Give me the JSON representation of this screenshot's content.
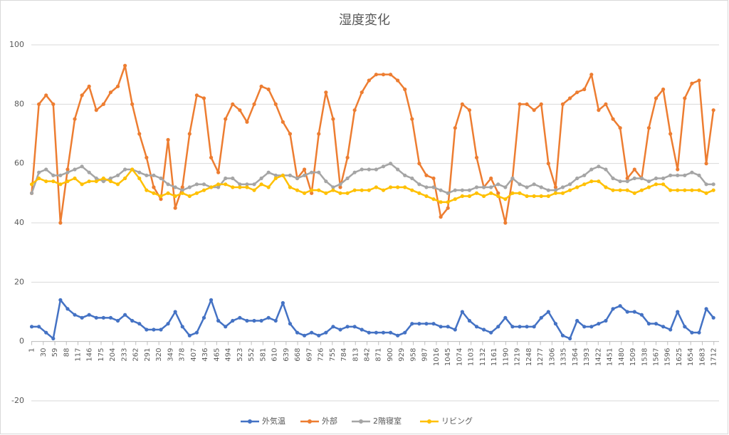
{
  "chart_data": {
    "type": "line",
    "title": "湿度変化",
    "x": [
      1,
      19,
      37,
      55,
      73,
      91,
      109,
      127,
      145,
      163,
      181,
      199,
      217,
      235,
      253,
      271,
      289,
      307,
      325,
      343,
      361,
      379,
      397,
      415,
      433,
      451,
      469,
      487,
      505,
      523,
      541,
      559,
      577,
      595,
      613,
      631,
      649,
      667,
      685,
      703,
      721,
      739,
      757,
      775,
      793,
      811,
      829,
      847,
      865,
      883,
      901,
      919,
      937,
      955,
      973,
      991,
      1009,
      1027,
      1045,
      1063,
      1081,
      1099,
      1117,
      1135,
      1153,
      1171,
      1189,
      1207,
      1225,
      1243,
      1261,
      1279,
      1297,
      1315,
      1333,
      1351,
      1369,
      1387,
      1405,
      1423,
      1441,
      1459,
      1477,
      1495,
      1513,
      1531,
      1549,
      1567,
      1585,
      1603,
      1621,
      1639,
      1657,
      1675,
      1693,
      1711
    ],
    "series": [
      {
        "name": "外気温",
        "color": "#4472c4",
        "values": [
          5,
          5,
          3,
          1,
          14,
          11,
          9,
          8,
          9,
          8,
          8,
          8,
          7,
          9,
          7,
          6,
          4,
          4,
          4,
          6,
          10,
          5,
          2,
          3,
          8,
          14,
          7,
          5,
          7,
          8,
          7,
          7,
          7,
          8,
          7,
          13,
          6,
          3,
          2,
          3,
          2,
          3,
          5,
          4,
          5,
          5,
          4,
          3,
          3,
          3,
          3,
          2,
          3,
          6,
          6,
          6,
          6,
          5,
          5,
          4,
          10,
          7,
          5,
          4,
          3,
          5,
          8,
          5,
          5,
          5,
          5,
          8,
          10,
          6,
          2,
          1,
          7,
          5,
          5,
          6,
          7,
          11,
          12,
          10,
          10,
          9,
          6,
          6,
          5,
          4,
          10,
          5,
          3,
          3,
          11,
          8
        ]
      },
      {
        "name": "外部",
        "color": "#ed7d31",
        "values": [
          50,
          80,
          83,
          80,
          40,
          58,
          75,
          83,
          86,
          78,
          80,
          84,
          86,
          93,
          80,
          70,
          62,
          52,
          48,
          68,
          45,
          52,
          70,
          83,
          82,
          62,
          57,
          75,
          80,
          78,
          74,
          80,
          86,
          85,
          80,
          74,
          70,
          55,
          58,
          50,
          70,
          84,
          75,
          52,
          62,
          78,
          84,
          88,
          90,
          90,
          90,
          88,
          85,
          75,
          60,
          56,
          55,
          42,
          45,
          72,
          80,
          78,
          62,
          52,
          55,
          50,
          40,
          55,
          80,
          80,
          78,
          80,
          60,
          52,
          80,
          82,
          84,
          85,
          90,
          78,
          80,
          75,
          72,
          55,
          58,
          55,
          72,
          82,
          85,
          70,
          58,
          82,
          87,
          88,
          60,
          78
        ]
      },
      {
        "name": "2階寝室",
        "color": "#a5a5a5",
        "values": [
          50,
          57,
          58,
          56,
          56,
          57,
          58,
          59,
          57,
          55,
          54,
          55,
          56,
          58,
          58,
          57,
          56,
          56,
          55,
          53,
          52,
          51,
          52,
          53,
          53,
          52,
          52,
          55,
          55,
          53,
          53,
          53,
          55,
          57,
          56,
          56,
          56,
          55,
          56,
          57,
          57,
          54,
          52,
          53,
          55,
          57,
          58,
          58,
          58,
          59,
          60,
          58,
          56,
          55,
          53,
          52,
          52,
          51,
          50,
          51,
          51,
          51,
          52,
          52,
          52,
          53,
          52,
          55,
          53,
          52,
          53,
          52,
          51,
          51,
          52,
          53,
          55,
          56,
          58,
          59,
          58,
          55,
          54,
          54,
          55,
          55,
          54,
          55,
          55,
          56,
          56,
          56,
          57,
          56,
          53,
          53
        ]
      },
      {
        "name": "リビング",
        "color": "#ffc000",
        "values": [
          53,
          55,
          54,
          54,
          53,
          54,
          55,
          53,
          54,
          54,
          55,
          54,
          53,
          55,
          58,
          55,
          51,
          50,
          49,
          50,
          49,
          50,
          49,
          50,
          51,
          52,
          53,
          53,
          52,
          52,
          52,
          51,
          53,
          52,
          55,
          56,
          52,
          51,
          50,
          51,
          51,
          50,
          51,
          50,
          50,
          51,
          51,
          51,
          52,
          51,
          52,
          52,
          52,
          51,
          50,
          49,
          48,
          47,
          47,
          48,
          49,
          49,
          50,
          49,
          50,
          49,
          48,
          50,
          50,
          49,
          49,
          49,
          49,
          50,
          50,
          51,
          52,
          53,
          54,
          54,
          52,
          51,
          51,
          51,
          50,
          51,
          52,
          53,
          53,
          51,
          51,
          51,
          51,
          51,
          50,
          51
        ]
      }
    ],
    "xlim": [
      0,
      1725
    ],
    "xticks": [
      1,
      30,
      59,
      88,
      117,
      146,
      175,
      204,
      233,
      262,
      291,
      320,
      349,
      378,
      407,
      436,
      465,
      494,
      523,
      552,
      581,
      610,
      639,
      668,
      697,
      726,
      755,
      784,
      813,
      842,
      871,
      900,
      929,
      958,
      987,
      1016,
      1045,
      1074,
      1103,
      1132,
      1161,
      1190,
      1219,
      1248,
      1277,
      1306,
      1335,
      1364,
      1393,
      1422,
      1451,
      1480,
      1509,
      1538,
      1567,
      1596,
      1625,
      1654,
      1683,
      1712
    ],
    "ylim": [
      -20,
      100
    ],
    "yticks": [
      -20,
      0,
      20,
      40,
      60,
      80,
      100
    ],
    "grid": true,
    "markers": true,
    "legend": "bottom"
  }
}
